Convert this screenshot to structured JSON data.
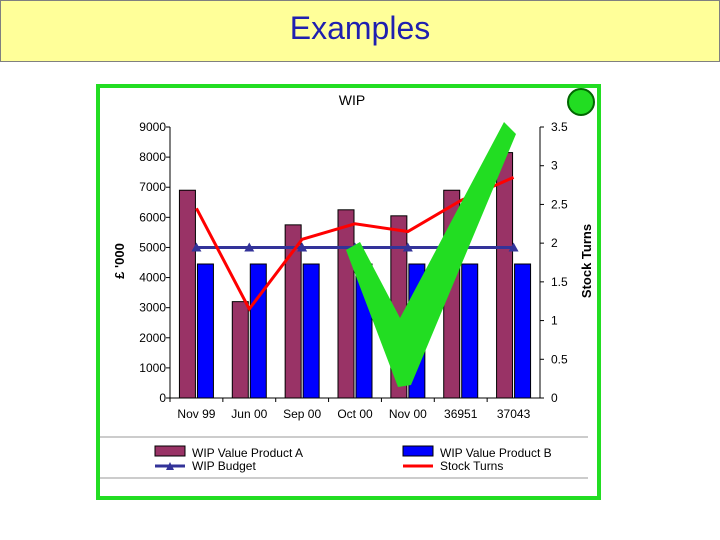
{
  "slide": {
    "title": "Examples"
  },
  "colors": {
    "header_bg": "#ffff99",
    "frame": "#22dd22",
    "product_a": "#993366",
    "product_b": "#0000ff",
    "budget": "#333399",
    "stock_turns": "#ff0000",
    "check": "#22dd22"
  },
  "chart_data": {
    "type": "bar",
    "title": "WIP",
    "ylabel": "£ '000",
    "y2label": "Stock Turns",
    "categories": [
      "Nov 99",
      "Jun 00",
      "Sep 00",
      "Oct 00",
      "Nov 00",
      "36951",
      "37043"
    ],
    "ylim": [
      0,
      9000
    ],
    "y2lim": [
      0,
      3.5
    ],
    "yticks": [
      "9000",
      "8000",
      "7000",
      "6000",
      "5000",
      "4000",
      "3000",
      "2000",
      "1000",
      "0"
    ],
    "y2ticks": [
      "3.5",
      "3",
      "2.5",
      "2",
      "1.5",
      "1",
      "0.5",
      "0"
    ],
    "series": [
      {
        "name": "WIP Value Product A",
        "type": "bar",
        "axis": "left",
        "values": [
          6900,
          3200,
          5750,
          6250,
          6050,
          6900,
          8150
        ]
      },
      {
        "name": "WIP Value Product B",
        "type": "bar",
        "axis": "left",
        "values": [
          4450,
          4450,
          4450,
          4450,
          4450,
          4450,
          4450
        ]
      },
      {
        "name": "WIP Budget",
        "type": "line",
        "axis": "left",
        "values": [
          5000,
          5000,
          5000,
          5000,
          5000,
          5000,
          5000
        ]
      },
      {
        "name": "Stock Turns",
        "type": "line",
        "axis": "right",
        "values": [
          2.45,
          1.15,
          2.05,
          2.25,
          2.15,
          2.55,
          2.85
        ]
      }
    ],
    "legend": [
      {
        "label": "WIP Value Product A",
        "kind": "bar",
        "series": 0
      },
      {
        "label": "WIP Value Product B",
        "kind": "bar",
        "series": 1
      },
      {
        "label": "WIP Budget",
        "kind": "line-marker",
        "series": 2
      },
      {
        "label": "Stock Turns",
        "kind": "line",
        "series": 3
      }
    ],
    "legend_position": "bottom",
    "grid": false
  }
}
